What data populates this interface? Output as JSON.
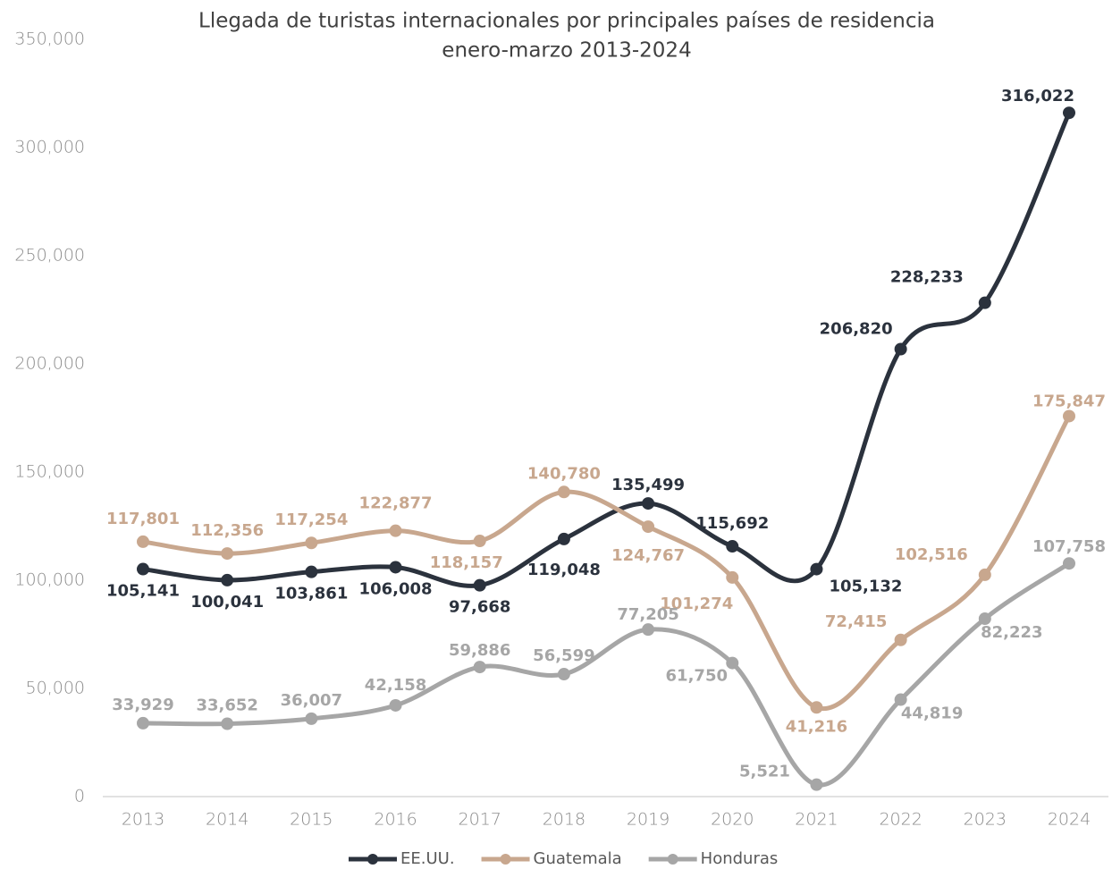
{
  "chart_data": {
    "type": "line",
    "title": "Llegada de turistas internacionales por principales países de residencia",
    "subtitle": "enero-marzo 2013-2024",
    "categories": [
      "2013",
      "2014",
      "2015",
      "2016",
      "2017",
      "2018",
      "2019",
      "2020",
      "2021",
      "2022",
      "2023",
      "2024"
    ],
    "series": [
      {
        "name": "EE.UU.",
        "color": "#2b323d",
        "values": [
          105141,
          100041,
          103861,
          106008,
          97668,
          119048,
          135499,
          115692,
          105132,
          206820,
          228233,
          316022
        ],
        "value_labels": [
          "105,141",
          "100,041",
          "103,861",
          "106,008",
          "97,668",
          "119,048",
          "135,499",
          "115,692",
          "105,132",
          "206,820",
          "228,233",
          "316,022"
        ]
      },
      {
        "name": "Guatemala",
        "color": "#c8a78e",
        "values": [
          117801,
          112356,
          117254,
          122877,
          118157,
          140780,
          124767,
          101274,
          41216,
          72415,
          102516,
          175847
        ],
        "value_labels": [
          "117,801",
          "112,356",
          "117,254",
          "122,877",
          "118,157",
          "140,780",
          "124,767",
          "101,274",
          "41,216",
          "72,415",
          "102,516",
          "175,847"
        ]
      },
      {
        "name": "Honduras",
        "color": "#a6a6a6",
        "values": [
          33929,
          33652,
          36007,
          42158,
          59886,
          56599,
          77205,
          61750,
          5521,
          44819,
          82223,
          107758
        ],
        "value_labels": [
          "33,929",
          "33,652",
          "36,007",
          "42,158",
          "59,886",
          "56,599",
          "77,205",
          "61,750",
          "5,521",
          "44,819",
          "82,223",
          "107,758"
        ]
      }
    ],
    "ylim": [
      0,
      350000
    ],
    "yticks": [
      0,
      {
        "value": 50000,
        "label": "50,000"
      },
      {
        "value": 100000,
        "label": "100,000"
      },
      {
        "value": 150000,
        "label": "150,000"
      },
      {
        "value": 200000,
        "label": "200,000"
      },
      {
        "value": 250000,
        "label": "250,000"
      },
      {
        "value": 300000,
        "label": "300,000"
      },
      {
        "value": 350000,
        "label": "350,000"
      }
    ],
    "grid": false,
    "legend": "bottom"
  }
}
